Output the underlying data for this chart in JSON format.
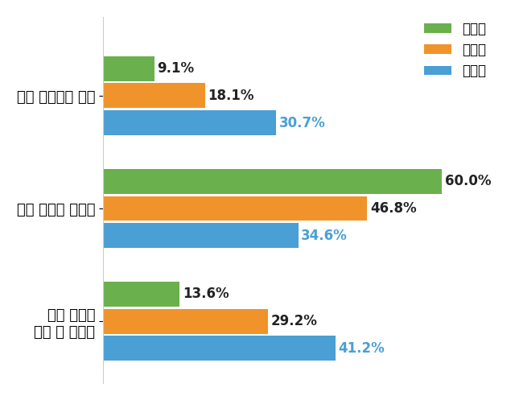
{
  "categories": [
    "환자 자신에게 있다",
    "환자 잘못이 아니다",
    "환자 스스로\n막을 수 있었다"
  ],
  "series": {
    "확진자": [
      9.1,
      60.0,
      13.6
    ],
    "접촉자": [
      18.1,
      46.8,
      29.2
    ],
    "일반인": [
      30.7,
      34.6,
      41.2
    ]
  },
  "colors": {
    "확진자": "#6ab04c",
    "접촉자": "#f0932b",
    "일반인": "#4a9fd4"
  },
  "label_colors": {
    "확진자": "#333333",
    "접촉자": "#333333",
    "일반인": "#4a9fd4"
  },
  "background_color": "#ffffff",
  "bar_height": 0.22,
  "xlim": [
    0,
    70
  ],
  "legend_labels": [
    "확진자",
    "접촉자",
    "일반인"
  ],
  "value_fontsize": 13,
  "category_fontsize": 14
}
